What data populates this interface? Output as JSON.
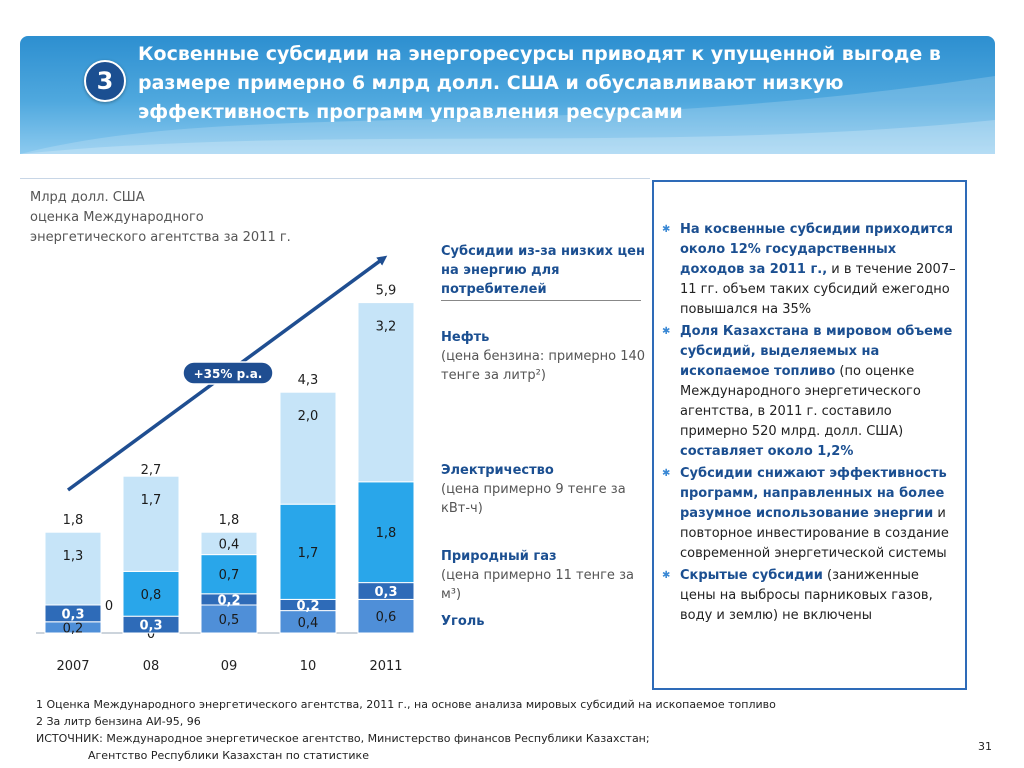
{
  "header": {
    "badge": "3",
    "title": "Косвенные субсидии на энергоресурсы приводят к упущенной выгоде в размере примерно 6 млрд долл. США и обуславливают низкую эффективность программ управления ресурсами"
  },
  "unit": {
    "line1": "Млрд долл. США",
    "line2": "оценка Международного",
    "line3": "энергетического агентства за 2011 г."
  },
  "chart_data": {
    "type": "bar",
    "stacked": true,
    "categories": [
      "2007",
      "08",
      "09",
      "10",
      "2011"
    ],
    "totals": [
      "1,8",
      "2,7",
      "1,8",
      "4,3",
      "5,9"
    ],
    "total_values": [
      1.8,
      2.7,
      1.8,
      4.3,
      5.9
    ],
    "series": [
      {
        "name": "Уголь",
        "values": [
          0.2,
          0.0,
          0.5,
          0.4,
          0.6
        ],
        "labels": [
          "0,2",
          "0",
          "0,5",
          "0,4",
          "0,6"
        ]
      },
      {
        "name": "Природный газ",
        "values": [
          0.3,
          0.3,
          0.2,
          0.2,
          0.3
        ],
        "labels": [
          "0,3",
          "0,3",
          "0,2",
          "0,2",
          "0,3"
        ]
      },
      {
        "name": "Электричество",
        "values": [
          0.0,
          0.8,
          0.7,
          1.7,
          1.8
        ],
        "labels": [
          "0",
          "0,8",
          "0,7",
          "1,7",
          "1,8"
        ]
      },
      {
        "name": "Нефть",
        "values": [
          1.3,
          1.7,
          0.4,
          2.0,
          3.2
        ],
        "labels": [
          "1,3",
          "1,7",
          "0,4",
          "2,0",
          "3,2"
        ]
      }
    ],
    "colors": {
      "coal": "#4f8fd8",
      "gas": "#2e6bb8",
      "electricity": "#29a6ea",
      "oil": "#c6e4f8",
      "arrow": "#1f4e91",
      "growth_badge": "#1f4e91"
    },
    "growth_label": "+35% p.a."
  },
  "legend": {
    "title": "Субсидии из-за низких цен на энергию для потребителей",
    "oil_name": "Нефть",
    "oil_desc": "(цена бензина: примерно 140 тенге за литр²)",
    "elec_name": "Электричество",
    "elec_desc": "(цена примерно 9 тенге за кВт-ч)",
    "gas_name": "Природный газ",
    "gas_desc": "(цена примерно 11 тенге за м³)",
    "coal_name": "Уголь"
  },
  "notes": {
    "n1_bold": "На косвенные субсидии приходится около 12% государственных доходов за 2011 г.,",
    "n1_rest": " и в течение 2007–11 гг. объем таких субсидий ежегодно повышался на 35%",
    "n2_bold": "Доля Казахстана в мировом объеме субсидий, выделяемых на ископаемое топливо",
    "n2_rest": " (по оценке Международного энергетического агентства, в 2011 г. составило примерно 520 млрд. долл. США)",
    "n2_bold2": " составляет около 1,2%",
    "n3_bold": "Субсидии снижают эффективность программ, направленных на более разумное использование энергии",
    "n3_rest": " и повторное инвестирование в создание современной энергетической системы",
    "n4_bold": "Скрытые субсидии",
    "n4_rest": " (заниженные цены на выбросы парниковых газов, воду и землю) не включены"
  },
  "footnotes": {
    "f1": "1 Оценка Международного энергетического агентства, 2011 г., на основе анализа мировых субсидий на ископаемое топливо",
    "f2": "2 За литр бензина АИ-95, 96",
    "f3": "ИСТОЧНИК: Международное энергетическое агентство, Министерство финансов Республики Казахстан;",
    "f4": "Агентство Республики Казахстан по статистике"
  },
  "page_number": "31"
}
